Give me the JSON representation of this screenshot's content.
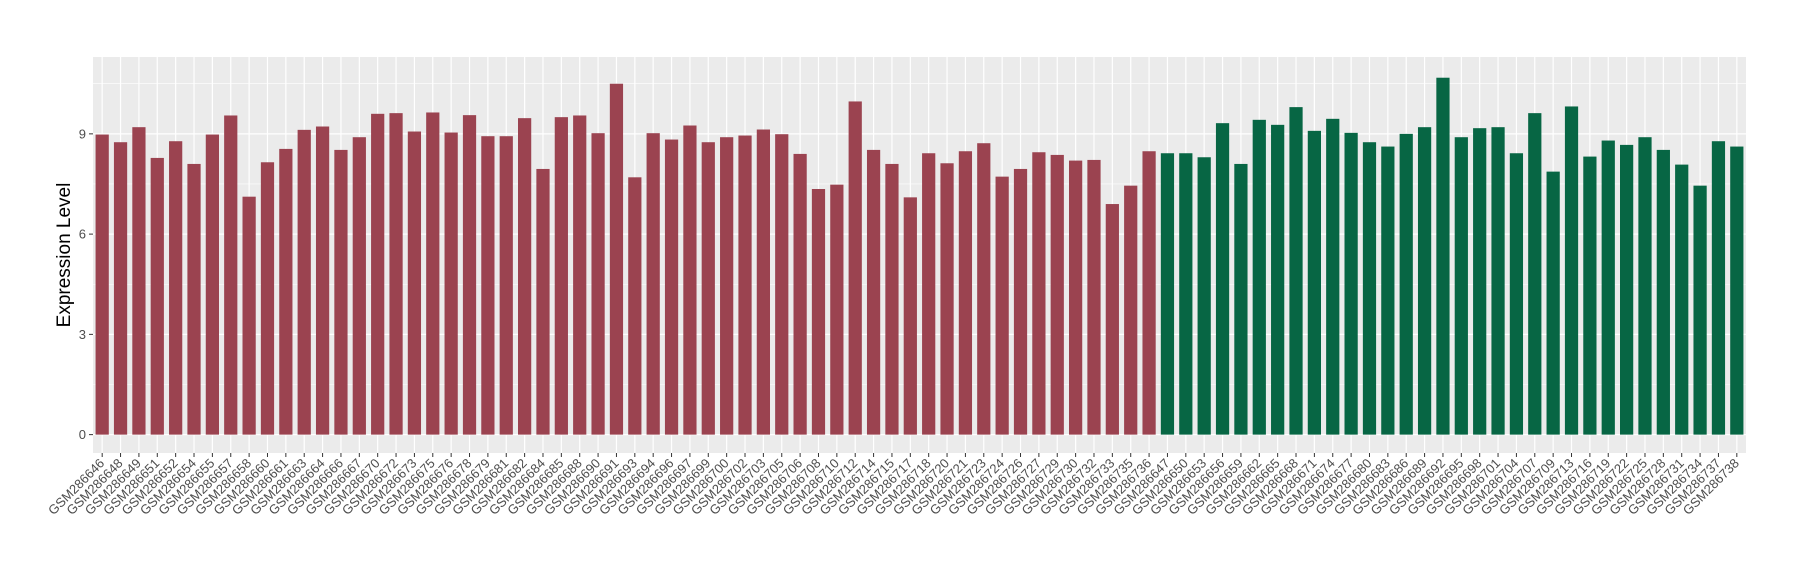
{
  "chart_data": {
    "type": "bar",
    "xlabel": "",
    "ylabel": "Expression Level",
    "ylim": [
      -0.55,
      11.3
    ],
    "yticks": [
      0,
      3,
      6,
      9
    ],
    "grid": true,
    "legend": "none",
    "colors": {
      "group_a": "#9b4350",
      "group_b": "#076644",
      "panel": "#ebebeb",
      "gridline": "#ffffff"
    },
    "categories": [
      "GSM286646",
      "GSM286648",
      "GSM286649",
      "GSM286651",
      "GSM286652",
      "GSM286654",
      "GSM286655",
      "GSM286657",
      "GSM286658",
      "GSM286660",
      "GSM286661",
      "GSM286663",
      "GSM286664",
      "GSM286666",
      "GSM286667",
      "GSM286670",
      "GSM286672",
      "GSM286673",
      "GSM286675",
      "GSM286676",
      "GSM286678",
      "GSM286679",
      "GSM286681",
      "GSM286682",
      "GSM286684",
      "GSM286685",
      "GSM286688",
      "GSM286690",
      "GSM286691",
      "GSM286693",
      "GSM286694",
      "GSM286696",
      "GSM286697",
      "GSM286699",
      "GSM286700",
      "GSM286702",
      "GSM286703",
      "GSM286705",
      "GSM286706",
      "GSM286708",
      "GSM286710",
      "GSM286712",
      "GSM286714",
      "GSM286715",
      "GSM286717",
      "GSM286718",
      "GSM286720",
      "GSM286721",
      "GSM286723",
      "GSM286724",
      "GSM286726",
      "GSM286727",
      "GSM286729",
      "GSM286730",
      "GSM286732",
      "GSM286733",
      "GSM286735",
      "GSM286736",
      "GSM286647",
      "GSM286650",
      "GSM286653",
      "GSM286656",
      "GSM286659",
      "GSM286662",
      "GSM286665",
      "GSM286668",
      "GSM286671",
      "GSM286674",
      "GSM286677",
      "GSM286680",
      "GSM286683",
      "GSM286686",
      "GSM286689",
      "GSM286692",
      "GSM286695",
      "GSM286698",
      "GSM286701",
      "GSM286704",
      "GSM286707",
      "GSM286709",
      "GSM286713",
      "GSM286716",
      "GSM286719",
      "GSM286722",
      "GSM286725",
      "GSM286728",
      "GSM286731",
      "GSM286734",
      "GSM286737",
      "GSM286738"
    ],
    "values": [
      8.98,
      8.75,
      9.2,
      8.28,
      8.78,
      8.1,
      8.98,
      9.55,
      7.12,
      8.15,
      8.55,
      9.12,
      9.22,
      8.52,
      8.9,
      9.6,
      9.62,
      9.07,
      9.64,
      9.04,
      9.56,
      8.93,
      8.93,
      9.47,
      7.95,
      9.5,
      9.55,
      9.02,
      10.5,
      7.7,
      9.02,
      8.83,
      9.25,
      8.75,
      8.9,
      8.95,
      9.13,
      8.99,
      8.4,
      7.35,
      7.48,
      9.97,
      8.52,
      8.1,
      7.1,
      8.42,
      8.12,
      8.48,
      8.72,
      7.72,
      7.95,
      8.45,
      8.37,
      8.2,
      8.22,
      6.9,
      7.45,
      8.48,
      8.42,
      8.42,
      8.3,
      9.32,
      8.1,
      9.42,
      9.27,
      9.8,
      9.09,
      9.45,
      9.03,
      8.75,
      8.62,
      9.0,
      9.2,
      10.68,
      8.9,
      9.17,
      9.2,
      8.42,
      9.62,
      7.87,
      9.82,
      8.32,
      8.8,
      8.67,
      8.9,
      8.52,
      8.08,
      7.45,
      8.78,
      8.62
    ],
    "group_split": 58
  }
}
